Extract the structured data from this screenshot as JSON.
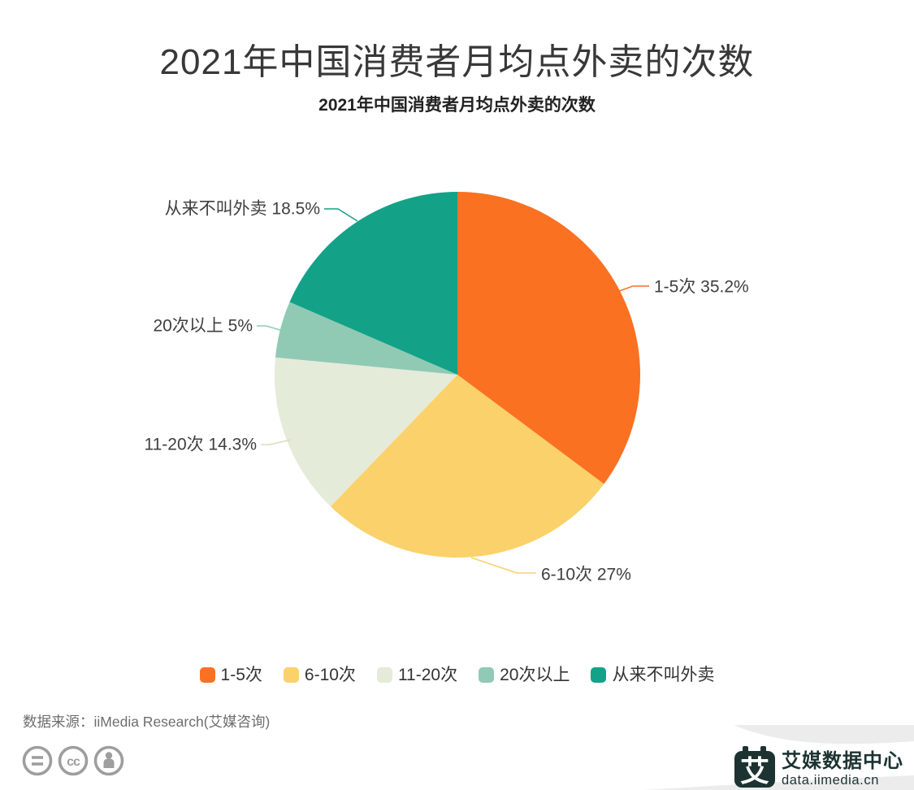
{
  "page": {
    "title": "2021年中国消费者月均点外卖的次数",
    "subtitle": "2021年中国消费者月均点外卖的次数",
    "source": "数据来源：iiMedia Research(艾媒咨询)",
    "footer_logo": {
      "mark": "艾",
      "name": "艾媒数据中心",
      "domain": "data.iimedia.cn",
      "color": "#1C3331"
    },
    "license_icons": [
      "equals-circle-icon",
      "cc-circle-icon",
      "person-circle-icon"
    ],
    "license_icon_color": "#9E9E9E",
    "corner_band_color": "#ECECEC"
  },
  "chart_data": {
    "type": "pie",
    "title": "2021年中国消费者月均点外卖的次数",
    "unit": "%",
    "start_angle_deg": 0,
    "direction": "clockwise",
    "legend_position": "bottom",
    "slices": [
      {
        "label": "1-5次",
        "value": 35.2,
        "color": "#FA7122",
        "leader_color": "#FA7122"
      },
      {
        "label": "6-10次",
        "value": 27,
        "color": "#FBD16B",
        "leader_color": "#FBD16B"
      },
      {
        "label": "11-20次",
        "value": 14.3,
        "color": "#E5EBD9",
        "leader_color": "#D8DDBE"
      },
      {
        "label": "20次以上",
        "value": 5,
        "color": "#90CAB5",
        "leader_color": "#90CAB5"
      },
      {
        "label": "从来不叫外卖",
        "value": 18.5,
        "color": "#13A287",
        "leader_color": "#13A287"
      }
    ],
    "callout_format": "{label} {value}%"
  }
}
